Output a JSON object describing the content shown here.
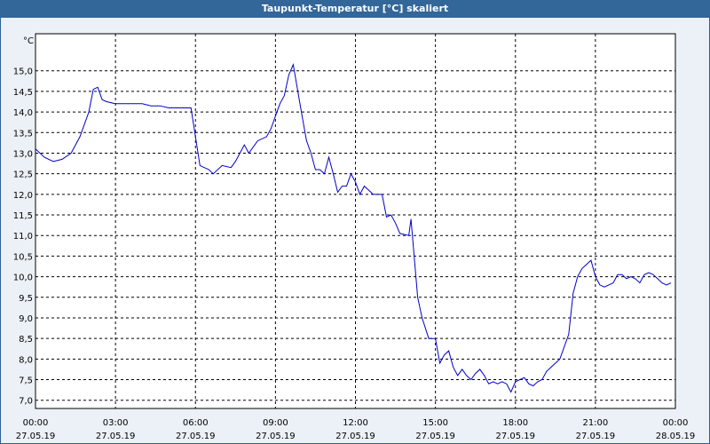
{
  "window": {
    "title": "Taupunkt-Temperatur [°C] skaliert"
  },
  "colors": {
    "titlebar": "#336699",
    "background": "#ECF1F7",
    "plot": "#FFFFFF",
    "line": "#0000CC",
    "grid": "#000000"
  },
  "chart_data": {
    "type": "line",
    "title": "Taupunkt-Temperatur [°C] skaliert",
    "ylabel": "°C",
    "xlabel": "",
    "grid": true,
    "ylim": [
      6.8,
      15.9
    ],
    "xlim": [
      "27.05.19 00:00",
      "28.05.19 00:00"
    ],
    "yticks": [
      "7,0",
      "7,5",
      "8,0",
      "8,5",
      "9,0",
      "9,5",
      "10,0",
      "10,5",
      "11,0",
      "11,5",
      "12,0",
      "12,5",
      "13,0",
      "13,5",
      "14,0",
      "14,5",
      "15,0"
    ],
    "ytick_values": [
      7.0,
      7.5,
      8.0,
      8.5,
      9.0,
      9.5,
      10.0,
      10.5,
      11.0,
      11.5,
      12.0,
      12.5,
      13.0,
      13.5,
      14.0,
      14.5,
      15.0
    ],
    "xticks": [
      {
        "time": "00:00",
        "date": "27.05.19"
      },
      {
        "time": "03:00",
        "date": "27.05.19"
      },
      {
        "time": "06:00",
        "date": "27.05.19"
      },
      {
        "time": "09:00",
        "date": "27.05.19"
      },
      {
        "time": "12:00",
        "date": "27.05.19"
      },
      {
        "time": "15:00",
        "date": "27.05.19"
      },
      {
        "time": "18:00",
        "date": "27.05.19"
      },
      {
        "time": "21:00",
        "date": "27.05.19"
      },
      {
        "time": "00:00",
        "date": "28.05.19"
      }
    ],
    "series": [
      {
        "x": [
          "00:00",
          "00:20",
          "00:40",
          "01:00",
          "01:20",
          "01:40",
          "02:00",
          "02:10",
          "02:20",
          "02:30",
          "02:40",
          "03:00",
          "03:30",
          "04:00",
          "04:20",
          "04:40",
          "05:00",
          "05:30",
          "05:50",
          "06:10",
          "06:30",
          "06:40",
          "07:00",
          "07:20",
          "07:30",
          "07:40",
          "07:50",
          "08:00",
          "08:20",
          "08:40",
          "08:50",
          "09:10",
          "09:20",
          "09:30",
          "09:40",
          "10:00",
          "10:10",
          "10:20",
          "10:30",
          "10:40",
          "10:50",
          "11:00",
          "11:10",
          "11:20",
          "11:30",
          "11:40",
          "11:50",
          "12:00",
          "12:10",
          "12:20",
          "12:40",
          "13:00",
          "13:10",
          "13:20",
          "13:30",
          "13:40",
          "14:00",
          "14:05",
          "14:20",
          "14:30",
          "14:45",
          "15:00",
          "15:10",
          "15:20",
          "15:30",
          "15:40",
          "15:50",
          "16:00",
          "16:10",
          "16:20",
          "16:30",
          "16:40",
          "16:50",
          "17:00",
          "17:10",
          "17:20",
          "17:30",
          "17:40",
          "17:50",
          "18:00",
          "18:10",
          "18:20",
          "18:30",
          "18:40",
          "18:50",
          "19:00",
          "19:10",
          "19:20",
          "19:40",
          "20:00",
          "20:10",
          "20:20",
          "20:30",
          "20:40",
          "20:50",
          "21:00",
          "21:10",
          "21:20",
          "21:30",
          "21:40",
          "21:50",
          "22:00",
          "22:10",
          "22:20",
          "22:30",
          "22:40",
          "22:50",
          "23:00",
          "23:10",
          "23:20",
          "23:30",
          "23:40",
          "23:50"
        ],
        "values": [
          13.1,
          12.9,
          12.8,
          12.85,
          13.0,
          13.4,
          14.0,
          14.55,
          14.6,
          14.3,
          14.25,
          14.2,
          14.2,
          14.2,
          14.15,
          14.15,
          14.1,
          14.1,
          14.1,
          12.7,
          12.6,
          12.5,
          12.7,
          12.65,
          12.8,
          13.0,
          13.2,
          13.0,
          13.3,
          13.4,
          13.6,
          14.2,
          14.4,
          14.9,
          15.15,
          13.9,
          13.3,
          13.0,
          12.6,
          12.6,
          12.5,
          12.9,
          12.5,
          12.05,
          12.2,
          12.2,
          12.5,
          12.3,
          12.0,
          12.2,
          12.0,
          12.0,
          11.45,
          11.5,
          11.3,
          11.05,
          11.0,
          11.4,
          9.5,
          9.0,
          8.5,
          8.5,
          7.9,
          8.1,
          8.2,
          7.8,
          7.6,
          7.75,
          7.6,
          7.5,
          7.65,
          7.75,
          7.6,
          7.4,
          7.45,
          7.4,
          7.45,
          7.4,
          7.2,
          7.45,
          7.5,
          7.55,
          7.4,
          7.35,
          7.45,
          7.5,
          7.7,
          7.8,
          8.0,
          8.6,
          9.6,
          10.0,
          10.2,
          10.3,
          10.4,
          10.0,
          9.8,
          9.75,
          9.8,
          9.85,
          10.05,
          10.05,
          9.95,
          10.0,
          9.95,
          9.85,
          10.05,
          10.1,
          10.05,
          9.95,
          9.85,
          9.8,
          9.85
        ]
      }
    ]
  }
}
